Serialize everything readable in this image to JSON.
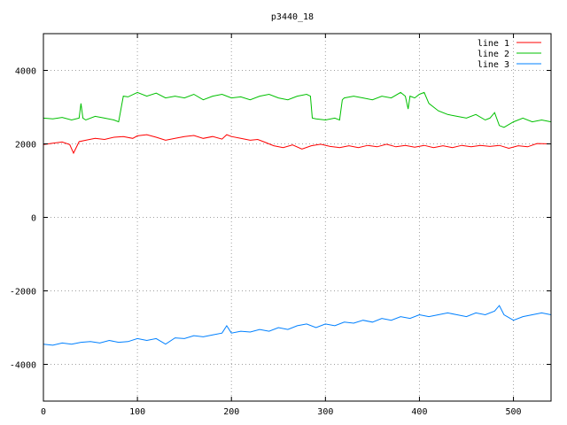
{
  "chart_data": {
    "type": "line",
    "title": "p3440_18",
    "xlabel": "",
    "ylabel": "",
    "xlim": [
      0,
      540
    ],
    "ylim": [
      -5000,
      5000
    ],
    "xticks": [
      0,
      100,
      200,
      300,
      400,
      500
    ],
    "yticks": [
      -4000,
      -2000,
      0,
      2000,
      4000
    ],
    "grid": true,
    "legend_position": "top-right",
    "series": [
      {
        "name": "line 1",
        "color": "#ff0000",
        "x": [
          0,
          10,
          20,
          28,
          32,
          38,
          45,
          55,
          65,
          75,
          85,
          95,
          100,
          110,
          120,
          130,
          140,
          150,
          160,
          170,
          180,
          190,
          195,
          200,
          210,
          220,
          228,
          235,
          245,
          255,
          265,
          275,
          285,
          295,
          305,
          315,
          325,
          335,
          345,
          355,
          365,
          375,
          385,
          395,
          405,
          415,
          425,
          435,
          445,
          455,
          465,
          475,
          485,
          495,
          505,
          515,
          525,
          540
        ],
        "y": [
          1980,
          2020,
          2050,
          1980,
          1750,
          2060,
          2100,
          2150,
          2120,
          2180,
          2200,
          2150,
          2220,
          2250,
          2180,
          2100,
          2150,
          2200,
          2230,
          2150,
          2200,
          2130,
          2250,
          2200,
          2150,
          2100,
          2120,
          2050,
          1950,
          1900,
          1970,
          1860,
          1950,
          1990,
          1930,
          1900,
          1950,
          1900,
          1960,
          1920,
          1990,
          1920,
          1960,
          1910,
          1960,
          1900,
          1950,
          1900,
          1960,
          1920,
          1960,
          1930,
          1960,
          1880,
          1950,
          1920,
          2010,
          2000
        ]
      },
      {
        "name": "line 2",
        "color": "#00c000",
        "x": [
          0,
          10,
          20,
          30,
          38,
          40,
          42,
          45,
          55,
          65,
          75,
          80,
          85,
          90,
          100,
          110,
          120,
          130,
          140,
          150,
          160,
          170,
          180,
          190,
          200,
          210,
          220,
          230,
          240,
          250,
          260,
          270,
          280,
          284,
          286,
          290,
          300,
          310,
          315,
          318,
          320,
          330,
          340,
          350,
          360,
          370,
          380,
          385,
          388,
          390,
          395,
          400,
          405,
          410,
          420,
          430,
          440,
          450,
          460,
          470,
          475,
          480,
          485,
          490,
          500,
          510,
          520,
          530,
          540
        ],
        "y": [
          2700,
          2680,
          2720,
          2650,
          2700,
          3100,
          2700,
          2650,
          2750,
          2700,
          2650,
          2600,
          3300,
          3280,
          3400,
          3300,
          3380,
          3250,
          3300,
          3250,
          3350,
          3200,
          3300,
          3350,
          3250,
          3280,
          3200,
          3300,
          3350,
          3250,
          3200,
          3300,
          3350,
          3300,
          2700,
          2680,
          2650,
          2700,
          2650,
          3200,
          3250,
          3300,
          3250,
          3200,
          3300,
          3250,
          3400,
          3300,
          2950,
          3300,
          3250,
          3350,
          3400,
          3100,
          2900,
          2800,
          2750,
          2700,
          2800,
          2650,
          2700,
          2850,
          2500,
          2450,
          2600,
          2700,
          2600,
          2650,
          2600
        ]
      },
      {
        "name": "line 3",
        "color": "#0080ff",
        "x": [
          0,
          10,
          20,
          30,
          40,
          50,
          60,
          70,
          80,
          90,
          100,
          110,
          120,
          130,
          140,
          150,
          160,
          170,
          180,
          190,
          195,
          200,
          210,
          220,
          230,
          240,
          250,
          260,
          270,
          280,
          290,
          300,
          310,
          320,
          330,
          340,
          350,
          360,
          370,
          380,
          390,
          400,
          410,
          420,
          430,
          440,
          450,
          460,
          470,
          480,
          485,
          490,
          500,
          510,
          520,
          530,
          540
        ],
        "y": [
          -3450,
          -3480,
          -3420,
          -3450,
          -3400,
          -3380,
          -3420,
          -3350,
          -3400,
          -3380,
          -3300,
          -3350,
          -3300,
          -3450,
          -3280,
          -3300,
          -3220,
          -3250,
          -3200,
          -3150,
          -2950,
          -3150,
          -3100,
          -3120,
          -3050,
          -3100,
          -3000,
          -3050,
          -2950,
          -2900,
          -3000,
          -2900,
          -2950,
          -2850,
          -2880,
          -2800,
          -2850,
          -2750,
          -2800,
          -2700,
          -2750,
          -2650,
          -2700,
          -2650,
          -2600,
          -2650,
          -2700,
          -2600,
          -2650,
          -2550,
          -2400,
          -2650,
          -2800,
          -2700,
          -2650,
          -2600,
          -2650
        ]
      }
    ]
  }
}
